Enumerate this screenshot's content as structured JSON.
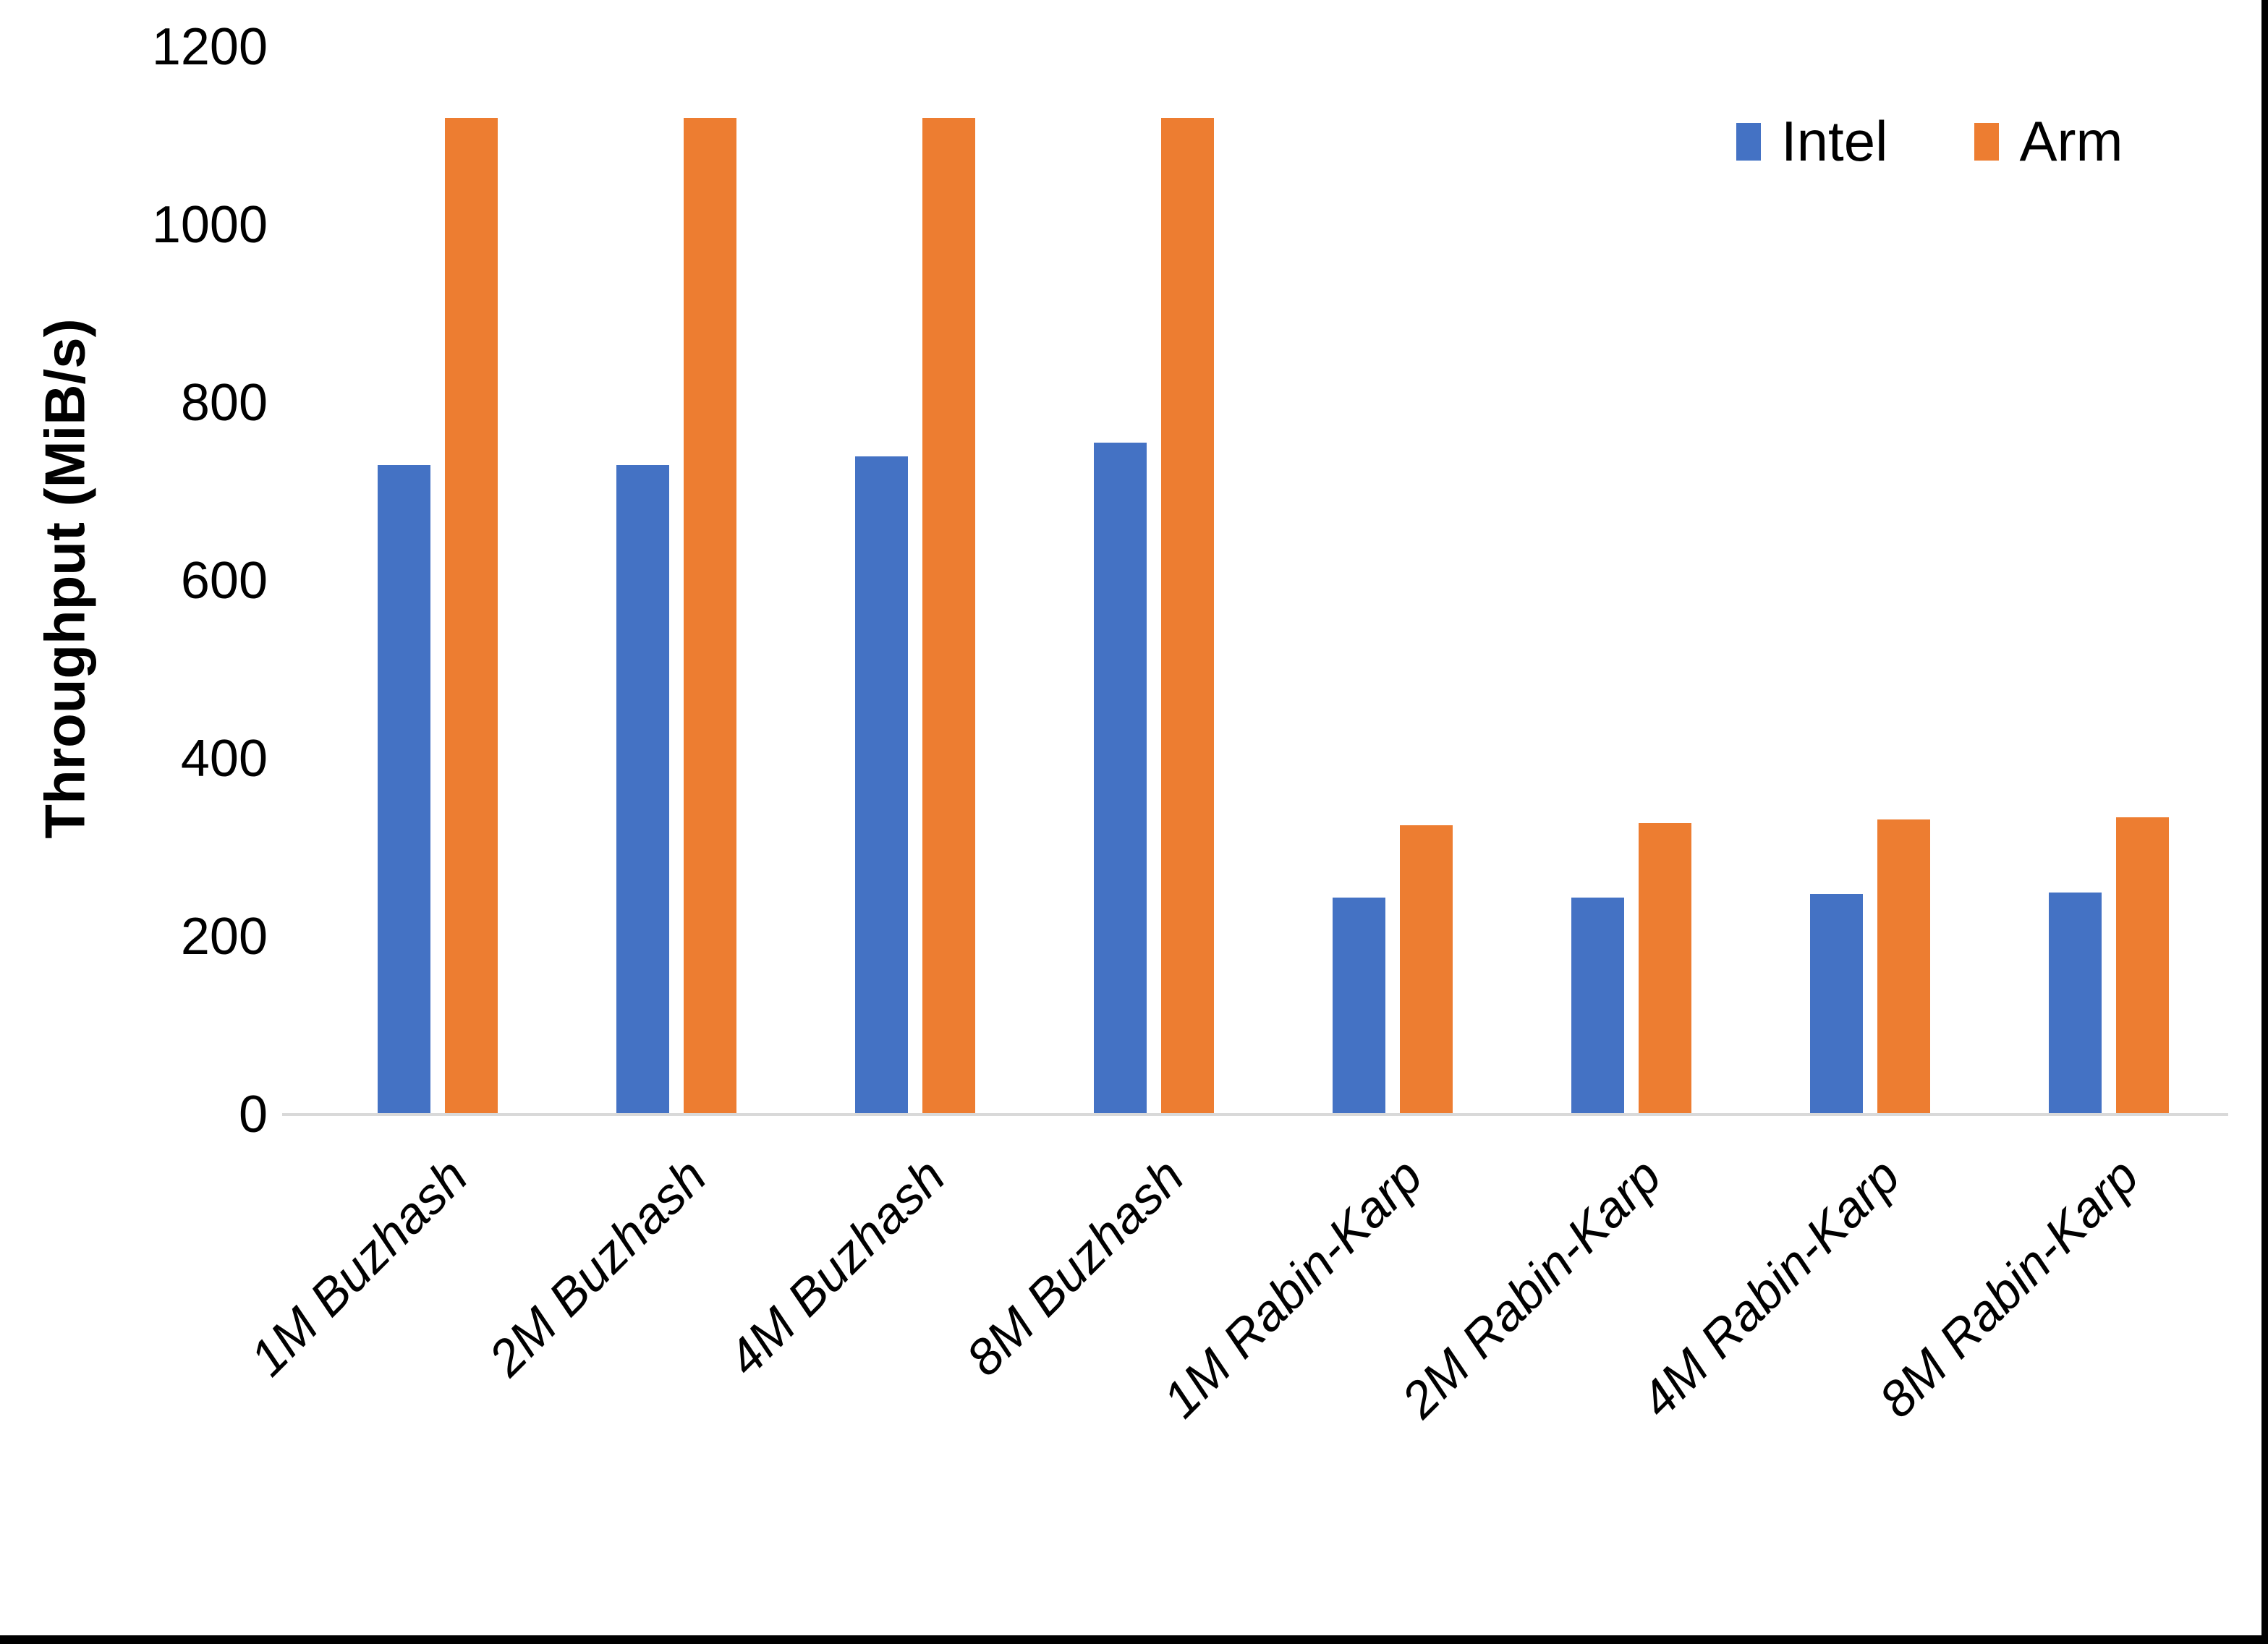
{
  "chart_data": {
    "type": "bar",
    "title": "",
    "categories": [
      "1M Buzhash",
      "2M Buzhash",
      "4M Buzhash",
      "8M Buzhash",
      "1M Rabin-Karp",
      "2M Rabin-Karp",
      "4M Rabin-Karp",
      "8M Rabin-Karp"
    ],
    "series": [
      {
        "name": "Intel",
        "color": "#4472C4",
        "values": [
          730,
          730,
          740,
          755,
          244,
          244,
          248,
          250
        ]
      },
      {
        "name": "Arm",
        "color": "#ED7D31",
        "values": [
          1120,
          1120,
          1120,
          1120,
          325,
          328,
          332,
          334
        ]
      }
    ],
    "xlabel": "",
    "ylabel": "Throughput (MiB/s)",
    "ylim": [
      0,
      1200
    ],
    "yticks": [
      0,
      200,
      400,
      600,
      800,
      1000,
      1200
    ],
    "grid": false,
    "legend_position": "top-right",
    "axis_line_color": "#D9D9D9",
    "text_color": "#000000"
  }
}
